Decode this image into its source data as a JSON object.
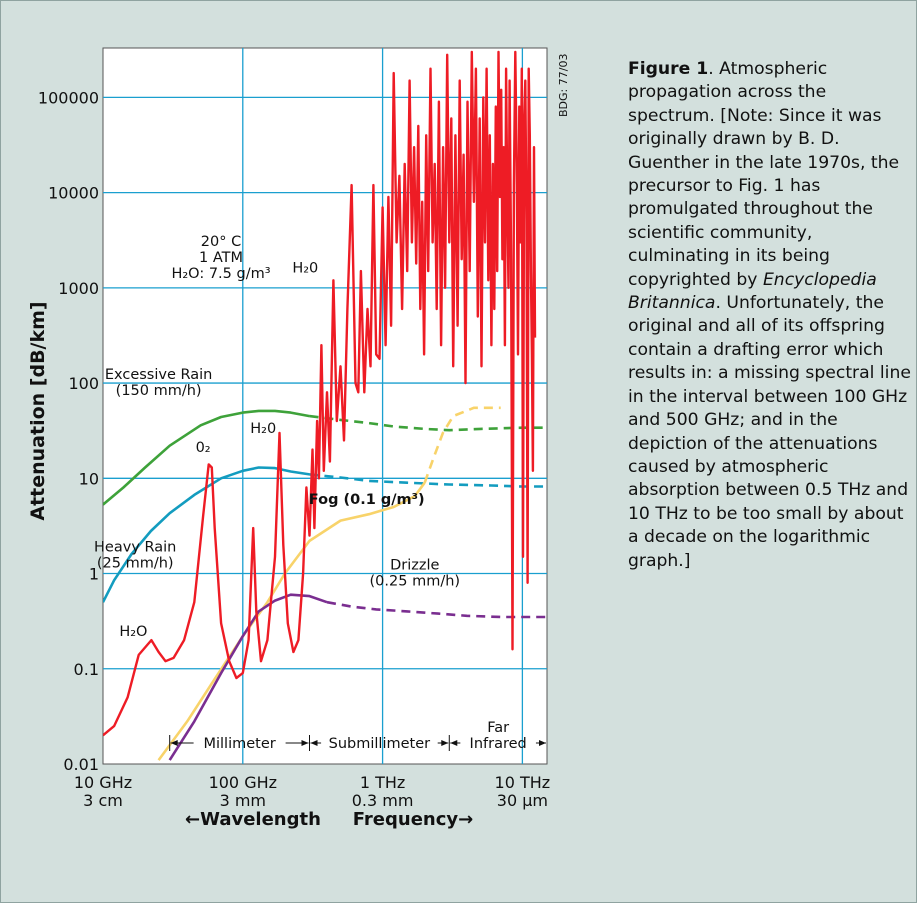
{
  "caption": {
    "figure_label": "Figure 1",
    "text_1": ". Atmospheric propagation across the spectrum. [Note: Since it was originally drawn by B. D. Guenther in the late 1970s, the precursor to Fig. 1 has promulgated throughout the scientific community, culminating in its being copyrighted by ",
    "italic": "Encyclopedia Britannica",
    "text_2": ". Unfortunately, the original and all of its offspring contain a drafting error which results in: a missing spectral line in the interval between 100 GHz and 500 GHz; and in the depiction of the attenuations caused by atmospheric absorption between 0.5 THz and 10 THz to be too small by about a decade on the logarithmic graph.]"
  },
  "colors": {
    "panel_background": "#d3e0dd",
    "plot_background": "#ffffff",
    "grid": "#1a9fcf",
    "h2o_line": "#ee1c25",
    "excessive_rain": "#3ea23a",
    "heavy_rain": "#139cbf",
    "fog": "#f8d36a",
    "drizzle": "#7a2e90"
  },
  "chart_data": {
    "type": "line",
    "x_scale": "log",
    "y_scale": "log",
    "x_unit": "GHz",
    "xlim": [
      10,
      15000
    ],
    "ylim": [
      0.01,
      330000
    ],
    "grid": true,
    "ylabel": "Attenuation [dB/km]",
    "x_axis_caption": {
      "left": "←Wavelength",
      "right": "Frequency→"
    },
    "y_ticks": [
      {
        "value": 0.01,
        "label": "0.01"
      },
      {
        "value": 0.1,
        "label": "0.1"
      },
      {
        "value": 1,
        "label": "1"
      },
      {
        "value": 10,
        "label": "10"
      },
      {
        "value": 100,
        "label": "100"
      },
      {
        "value": 1000,
        "label": "1000"
      },
      {
        "value": 10000,
        "label": "10000"
      },
      {
        "value": 100000,
        "label": "100000"
      }
    ],
    "x_ticks": [
      {
        "value": 10,
        "freq": "10 GHz",
        "wavelength": "3 cm"
      },
      {
        "value": 100,
        "freq": "100 GHz",
        "wavelength": "3 mm"
      },
      {
        "value": 1000,
        "freq": "1 THz",
        "wavelength": "0.3 mm"
      },
      {
        "value": 10000,
        "freq": "10 THz",
        "wavelength": "30 μm"
      }
    ],
    "bands": [
      {
        "label": "Millimeter",
        "from": 30,
        "to": 300
      },
      {
        "label": "Submillimeter",
        "from": 300,
        "to": 3000
      },
      {
        "label": "Infrared",
        "above": "Far",
        "from": 3000,
        "to": 15000
      }
    ],
    "conditions": {
      "line1": "20° C",
      "line2": "1 ATM",
      "line3": "H₂O: 7.5 g/m³"
    },
    "watermark": "BDG: 77/03",
    "annotations": [
      {
        "text": "H₂O",
        "x": 16.5,
        "y": 0.22
      },
      {
        "text": "0₂",
        "x": 52,
        "y": 19
      },
      {
        "text": "H₂0",
        "x": 140,
        "y": 30
      },
      {
        "text": "H₂0",
        "x": 280,
        "y": 1450
      }
    ],
    "series": [
      {
        "id": "excessive-rain",
        "label": "Excessive Rain",
        "sublabel": "(150 mm/h)",
        "label_at": {
          "x": 25,
          "y": 110
        },
        "colorKey": "excessive_rain",
        "solid": [
          [
            10,
            5.3
          ],
          [
            14,
            8
          ],
          [
            20,
            13
          ],
          [
            30,
            22
          ],
          [
            50,
            36
          ],
          [
            70,
            44
          ],
          [
            100,
            49
          ],
          [
            130,
            51
          ],
          [
            170,
            51
          ],
          [
            220,
            49
          ],
          [
            300,
            45
          ]
        ],
        "dashed": [
          [
            300,
            45
          ],
          [
            500,
            41
          ],
          [
            800,
            38
          ],
          [
            1200,
            35
          ],
          [
            2000,
            33
          ],
          [
            3000,
            32
          ],
          [
            5000,
            33
          ],
          [
            10000,
            34
          ],
          [
            15000,
            34
          ]
        ]
      },
      {
        "id": "heavy-rain",
        "label": "Heavy Rain",
        "sublabel": "(25 mm/h)",
        "label_at": {
          "x": 17,
          "y": 1.7
        },
        "colorKey": "heavy_rain",
        "solid": [
          [
            10,
            0.5
          ],
          [
            12,
            0.85
          ],
          [
            16,
            1.6
          ],
          [
            22,
            2.8
          ],
          [
            30,
            4.3
          ],
          [
            45,
            6.7
          ],
          [
            70,
            10
          ],
          [
            100,
            12
          ],
          [
            130,
            13
          ],
          [
            170,
            12.8
          ],
          [
            220,
            11.8
          ],
          [
            300,
            11
          ]
        ],
        "dashed": [
          [
            300,
            11
          ],
          [
            500,
            10.2
          ],
          [
            800,
            9.4
          ],
          [
            1500,
            9
          ],
          [
            3000,
            8.6
          ],
          [
            6000,
            8.4
          ],
          [
            10000,
            8.2
          ],
          [
            15000,
            8.2
          ]
        ]
      },
      {
        "id": "fog",
        "label": "Fog (0.1 g/m³)",
        "label_at": {
          "x": 770,
          "y": 5.4
        },
        "colorKey": "fog",
        "solid": [
          [
            25,
            0.011
          ],
          [
            40,
            0.028
          ],
          [
            60,
            0.07
          ],
          [
            100,
            0.22
          ],
          [
            150,
            0.5
          ],
          [
            200,
            1
          ],
          [
            300,
            2.2
          ],
          [
            500,
            3.6
          ],
          [
            800,
            4.2
          ],
          [
            1200,
            5
          ],
          [
            1700,
            6.5
          ],
          [
            2000,
            9
          ]
        ],
        "dashed": [
          [
            2000,
            9
          ],
          [
            2300,
            16
          ],
          [
            2700,
            30
          ],
          [
            3200,
            45
          ],
          [
            4500,
            55
          ],
          [
            7000,
            55
          ]
        ]
      },
      {
        "id": "drizzle",
        "label": "Drizzle",
        "sublabel": "(0.25 mm/h)",
        "label_at": {
          "x": 1700,
          "y": 1.1
        },
        "colorKey": "drizzle",
        "solid": [
          [
            30,
            0.011
          ],
          [
            45,
            0.028
          ],
          [
            70,
            0.09
          ],
          [
            100,
            0.22
          ],
          [
            130,
            0.4
          ],
          [
            170,
            0.52
          ],
          [
            220,
            0.6
          ],
          [
            300,
            0.58
          ],
          [
            400,
            0.5
          ]
        ],
        "dashed": [
          [
            400,
            0.5
          ],
          [
            600,
            0.45
          ],
          [
            900,
            0.42
          ],
          [
            1500,
            0.4
          ],
          [
            2500,
            0.38
          ],
          [
            4000,
            0.36
          ],
          [
            7000,
            0.35
          ],
          [
            10000,
            0.35
          ],
          [
            15000,
            0.35
          ]
        ]
      },
      {
        "id": "atmospheric-absorption",
        "label": "H₂O absorption",
        "colorKey": "h2o_line",
        "solid": [
          [
            10,
            0.02
          ],
          [
            12,
            0.025
          ],
          [
            15,
            0.05
          ],
          [
            18,
            0.14
          ],
          [
            22.2,
            0.2
          ],
          [
            25,
            0.15
          ],
          [
            28,
            0.12
          ],
          [
            32,
            0.13
          ],
          [
            38,
            0.2
          ],
          [
            45,
            0.5
          ],
          [
            52,
            4
          ],
          [
            57,
            14
          ],
          [
            60,
            13
          ],
          [
            63,
            3
          ],
          [
            70,
            0.3
          ],
          [
            80,
            0.12
          ],
          [
            90,
            0.08
          ],
          [
            100,
            0.09
          ],
          [
            110,
            0.2
          ],
          [
            118.7,
            3
          ],
          [
            125,
            0.4
          ],
          [
            135,
            0.12
          ],
          [
            150,
            0.2
          ],
          [
            170,
            1.5
          ],
          [
            183,
            30
          ],
          [
            195,
            2
          ],
          [
            210,
            0.3
          ],
          [
            230,
            0.15
          ],
          [
            250,
            0.2
          ],
          [
            270,
            1
          ],
          [
            285,
            8
          ],
          [
            300,
            2.5
          ],
          [
            315,
            20
          ],
          [
            325,
            3
          ],
          [
            340,
            40
          ],
          [
            350,
            10
          ],
          [
            365,
            250
          ],
          [
            380,
            12
          ],
          [
            400,
            80
          ],
          [
            420,
            15
          ],
          [
            445,
            1200
          ],
          [
            470,
            40
          ],
          [
            500,
            150
          ],
          [
            530,
            25
          ],
          [
            560,
            600
          ],
          [
            600,
            12000
          ],
          [
            640,
            100
          ],
          [
            670,
            80
          ],
          [
            700,
            1500
          ],
          [
            740,
            80
          ],
          [
            780,
            600
          ],
          [
            820,
            150
          ],
          [
            860,
            12000
          ],
          [
            900,
            200
          ],
          [
            950,
            180
          ],
          [
            1000,
            7000
          ],
          [
            1050,
            250
          ],
          [
            1100,
            9000
          ],
          [
            1150,
            400
          ],
          [
            1200,
            180000
          ],
          [
            1260,
            3000
          ],
          [
            1320,
            15000
          ],
          [
            1380,
            600
          ],
          [
            1440,
            20000
          ],
          [
            1500,
            1500
          ],
          [
            1560,
            150000
          ],
          [
            1620,
            3000
          ],
          [
            1680,
            30000
          ],
          [
            1740,
            1800
          ],
          [
            1800,
            50000
          ],
          [
            1860,
            600
          ],
          [
            1920,
            8000
          ],
          [
            1980,
            200
          ],
          [
            2050,
            40000
          ],
          [
            2120,
            1500
          ],
          [
            2200,
            200000
          ],
          [
            2280,
            3000
          ],
          [
            2360,
            20000
          ],
          [
            2440,
            600
          ],
          [
            2530,
            90000
          ],
          [
            2620,
            250
          ],
          [
            2710,
            30000
          ],
          [
            2800,
            1000
          ],
          [
            2900,
            280000
          ],
          [
            3000,
            3000
          ],
          [
            3100,
            60000
          ],
          [
            3200,
            150
          ],
          [
            3320,
            40000
          ],
          [
            3440,
            400
          ],
          [
            3560,
            150000
          ],
          [
            3680,
            2000
          ],
          [
            3800,
            25000
          ],
          [
            3920,
            100
          ],
          [
            4050,
            90000
          ],
          [
            4200,
            1500
          ],
          [
            4350,
            300000
          ],
          [
            4500,
            8000
          ],
          [
            4650,
            200000
          ],
          [
            4800,
            500
          ],
          [
            4950,
            60000
          ],
          [
            5100,
            150
          ],
          [
            5250,
            100000
          ],
          [
            5400,
            3000
          ],
          [
            5550,
            200000
          ],
          [
            5700,
            1200
          ],
          [
            5850,
            40000
          ],
          [
            6000,
            250
          ],
          [
            6150,
            20000
          ],
          [
            6300,
            600
          ],
          [
            6450,
            80000
          ],
          [
            6600,
            1500
          ],
          [
            6750,
            300000
          ],
          [
            6900,
            9000
          ],
          [
            7050,
            120000
          ],
          [
            7200,
            2000
          ],
          [
            7350,
            30000
          ],
          [
            7500,
            250
          ],
          [
            7650,
            200000
          ],
          [
            7800,
            8000
          ],
          [
            7950,
            1000
          ],
          [
            8100,
            150000
          ],
          [
            8300,
            2000
          ],
          [
            8500,
            0.16
          ],
          [
            8700,
            12000
          ],
          [
            8900,
            300000
          ],
          [
            9100,
            20000
          ],
          [
            9300,
            200
          ],
          [
            9500,
            80000
          ],
          [
            9700,
            3000
          ],
          [
            9900,
            200000
          ],
          [
            10100,
            1.5
          ],
          [
            10300,
            60000
          ],
          [
            10500,
            150000
          ],
          [
            10700,
            5000
          ],
          [
            10900,
            0.8
          ],
          [
            11100,
            200000
          ],
          [
            11300,
            40000
          ],
          [
            11500,
            1500
          ],
          [
            11700,
            200
          ],
          [
            11900,
            12
          ],
          [
            12100,
            30000
          ],
          [
            12300,
            300
          ]
        ]
      }
    ]
  }
}
